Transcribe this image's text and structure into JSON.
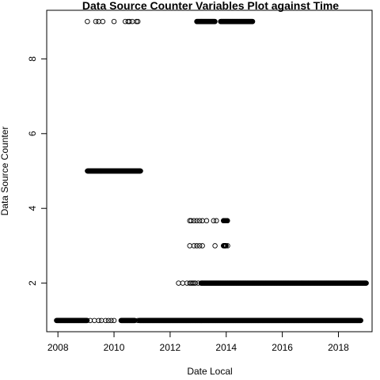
{
  "chart_data": {
    "type": "scatter",
    "title": "Data Source Counter Variables Plot against Time",
    "xlabel": "Date Local",
    "ylabel": "Data Source Counter",
    "xlim": [
      2007.6,
      2019.2
    ],
    "ylim": [
      0.7,
      9.3
    ],
    "x_ticks": [
      2008,
      2010,
      2012,
      2014,
      2016,
      2018
    ],
    "y_ticks": [
      2,
      4,
      6,
      8
    ],
    "grid": false,
    "marker": "open-circle",
    "points_x_unit": "decimal year",
    "clusters": [
      {
        "y": 1.0,
        "x_ranges": [
          [
            2007.95,
            2009.05
          ],
          [
            2010.25,
            2010.75
          ],
          [
            2010.9,
            2018.8
          ]
        ],
        "scatter_x": [
          2009.15,
          2009.3,
          2009.45,
          2009.55,
          2009.7,
          2009.8,
          2009.9,
          2010.0,
          2010.85
        ]
      },
      {
        "y": 2.0,
        "x_ranges": [
          [
            2013.1,
            2019.0
          ]
        ],
        "scatter_x": [
          2012.3,
          2012.45,
          2012.6,
          2012.7,
          2012.75,
          2012.8,
          2012.85,
          2012.9,
          2013.0
        ]
      },
      {
        "y": 3.0,
        "x_ranges": [
          [
            2013.9,
            2014.0
          ]
        ],
        "scatter_x": [
          2012.7,
          2012.85,
          2012.95,
          2013.05,
          2013.15,
          2013.6,
          2013.95,
          2014.05
        ]
      },
      {
        "y": 3.67,
        "x_ranges": [
          [
            2013.9,
            2014.05
          ]
        ],
        "scatter_x": [
          2012.7,
          2012.75,
          2012.85,
          2012.95,
          2013.05,
          2013.15,
          2013.3,
          2013.55,
          2013.65
        ]
      },
      {
        "y": 5.0,
        "x_ranges": [
          [
            2009.05,
            2010.95
          ]
        ],
        "scatter_x": []
      },
      {
        "y": 9.0,
        "x_ranges": [
          [
            2012.95,
            2013.6
          ],
          [
            2013.8,
            2014.95
          ]
        ],
        "scatter_x": [
          2009.05,
          2009.35,
          2009.45,
          2009.6,
          2010.0,
          2010.4,
          2010.5,
          2010.55,
          2010.65,
          2010.8,
          2010.85
        ]
      }
    ]
  }
}
